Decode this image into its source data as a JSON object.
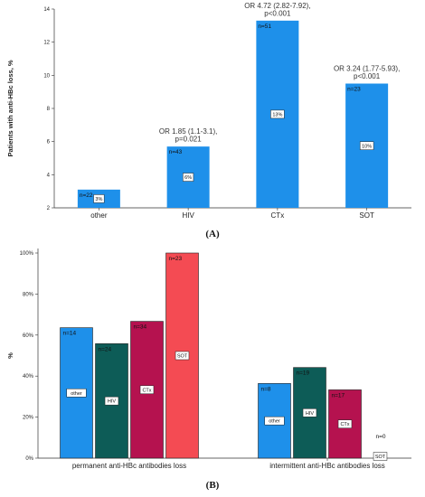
{
  "chart_data": [
    {
      "type": "bar",
      "panel_label": "(A)",
      "ylabel": "Patients with anti-HBc loss, %",
      "xlabel": "",
      "ylim": [
        2,
        14
      ],
      "yticks": [
        2,
        4,
        6,
        8,
        10,
        12,
        14
      ],
      "categories": [
        "other",
        "HIV",
        "CTx",
        "SOT"
      ],
      "values": [
        3.1,
        5.7,
        13.3,
        9.5
      ],
      "n_labels": [
        "n=22",
        "n=43",
        "n=51",
        "n=23"
      ],
      "percent_labels": [
        "3%",
        "6%",
        "13%",
        "10%"
      ],
      "annotations": [
        "",
        "OR 1.85 (1.1-3.1),\np=0.021",
        "OR 4.72 (2.82-7.92),\np<0.001",
        "OR 3.24 (1.77-5.93),\np<0.001"
      ],
      "bar_color": "#1e90ea",
      "grid": false
    },
    {
      "type": "bar",
      "panel_label": "(B)",
      "ylabel": "%",
      "xlabel": "",
      "ylim": [
        0,
        100
      ],
      "yticks": [
        "0%",
        "20%",
        "40%",
        "60%",
        "80%",
        "100%"
      ],
      "categories": [
        "permanent anti-HBc antibodies loss",
        "intermittent anti-HBc antibodies loss"
      ],
      "series": [
        {
          "legend_label": "other",
          "color": "#1e90ea",
          "values": [
            63.6,
            36.4
          ],
          "n_labels": [
            "n=14",
            "n=8"
          ]
        },
        {
          "legend_label": "HIV",
          "color": "#0d5c57",
          "values": [
            55.8,
            44.2
          ],
          "n_labels": [
            "n=24",
            "n=19"
          ]
        },
        {
          "legend_label": "CTx",
          "color": "#b5124f",
          "values": [
            66.7,
            33.3
          ],
          "n_labels": [
            "n=34",
            "n=17"
          ]
        },
        {
          "legend_label": "SOT",
          "color": "#f44b53",
          "values": [
            100,
            0
          ],
          "n_labels": [
            "n=23",
            "n=0"
          ]
        }
      ],
      "grid": false
    }
  ]
}
